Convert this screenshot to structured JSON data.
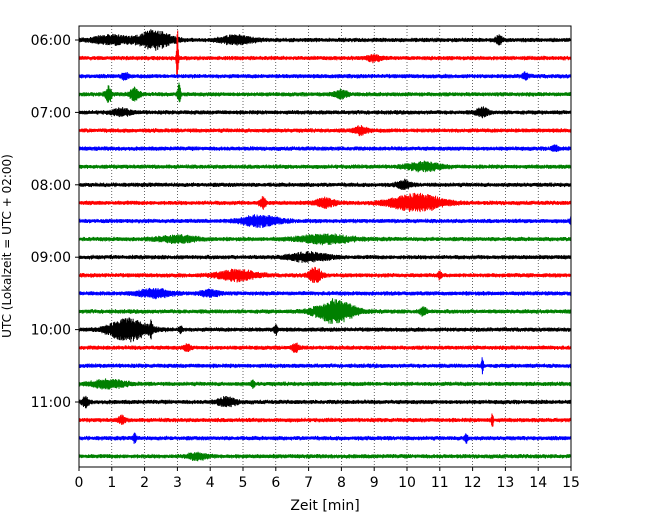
{
  "chart_data": {
    "type": "line",
    "title": "",
    "xlabel": "Zeit  [min]",
    "ylabel": "UTC (Lokalzeit = UTC + 02:00)",
    "xlim": [
      0,
      15
    ],
    "x_ticks": [
      0,
      1,
      2,
      3,
      4,
      5,
      6,
      7,
      8,
      9,
      10,
      11,
      12,
      13,
      14,
      15
    ],
    "x_tick_labels": [
      "0",
      "1",
      "2",
      "3",
      "4",
      "5",
      "6",
      "7",
      "8",
      "9",
      "10",
      "11",
      "12",
      "13",
      "14",
      "15"
    ],
    "y_tick_labels": [
      "06:00",
      "07:00",
      "08:00",
      "09:00",
      "10:00",
      "11:00"
    ],
    "grid": "vertical dotted lines at each minute",
    "line_interval_min": 15,
    "trace_colors": [
      "#000000",
      "#ff0000",
      "#0000ff",
      "#008000"
    ],
    "traces": [
      {
        "start": "06:00",
        "color": "#000000",
        "events": [
          {
            "t": 2.3,
            "amp": 9,
            "width": 0.5
          },
          {
            "t": 1.0,
            "amp": 4,
            "width": 0.6
          },
          {
            "t": 4.8,
            "amp": 4,
            "width": 0.5
          },
          {
            "t": 12.8,
            "amp": 4,
            "width": 0.1
          }
        ]
      },
      {
        "start": "06:15",
        "color": "#ff0000",
        "events": [
          {
            "t": 3.0,
            "amp": 32,
            "width": 0.03
          },
          {
            "t": 9.0,
            "amp": 3,
            "width": 0.2
          }
        ]
      },
      {
        "start": "06:30",
        "color": "#0000ff",
        "events": [
          {
            "t": 1.4,
            "amp": 4,
            "width": 0.1
          },
          {
            "t": 13.6,
            "amp": 3,
            "width": 0.1
          }
        ]
      },
      {
        "start": "06:45",
        "color": "#008000",
        "events": [
          {
            "t": 0.9,
            "amp": 8,
            "width": 0.1
          },
          {
            "t": 1.7,
            "amp": 6,
            "width": 0.15
          },
          {
            "t": 3.05,
            "amp": 10,
            "width": 0.05
          },
          {
            "t": 8.0,
            "amp": 4,
            "width": 0.2
          }
        ]
      },
      {
        "start": "07:00",
        "color": "#000000",
        "events": [
          {
            "t": 1.3,
            "amp": 3,
            "width": 0.3
          },
          {
            "t": 12.3,
            "amp": 4,
            "width": 0.2
          }
        ]
      },
      {
        "start": "07:15",
        "color": "#ff0000",
        "events": [
          {
            "t": 8.6,
            "amp": 4,
            "width": 0.2
          }
        ]
      },
      {
        "start": "07:30",
        "color": "#0000ff",
        "events": [
          {
            "t": 14.5,
            "amp": 3,
            "width": 0.1
          }
        ]
      },
      {
        "start": "07:45",
        "color": "#008000",
        "events": [
          {
            "t": 10.5,
            "amp": 4,
            "width": 0.5
          }
        ]
      },
      {
        "start": "08:00",
        "color": "#000000",
        "events": [
          {
            "t": 9.9,
            "amp": 4,
            "width": 0.2
          }
        ]
      },
      {
        "start": "08:15",
        "color": "#ff0000",
        "events": [
          {
            "t": 10.3,
            "amp": 8,
            "width": 0.8
          },
          {
            "t": 5.6,
            "amp": 5,
            "width": 0.1
          },
          {
            "t": 7.5,
            "amp": 4,
            "width": 0.3
          }
        ]
      },
      {
        "start": "08:30",
        "color": "#0000ff",
        "events": [
          {
            "t": 5.5,
            "amp": 5,
            "width": 0.6
          },
          {
            "t": 15.0,
            "amp": 4,
            "width": 0.05
          }
        ]
      },
      {
        "start": "08:45",
        "color": "#008000",
        "events": [
          {
            "t": 3.0,
            "amp": 3,
            "width": 0.6
          },
          {
            "t": 7.5,
            "amp": 4,
            "width": 0.8
          }
        ]
      },
      {
        "start": "09:00",
        "color": "#000000",
        "events": [
          {
            "t": 7.0,
            "amp": 4,
            "width": 0.6
          }
        ]
      },
      {
        "start": "09:15",
        "color": "#ff0000",
        "events": [
          {
            "t": 4.8,
            "amp": 5,
            "width": 0.6
          },
          {
            "t": 7.2,
            "amp": 7,
            "width": 0.2
          },
          {
            "t": 11.0,
            "amp": 4,
            "width": 0.05
          }
        ]
      },
      {
        "start": "09:30",
        "color": "#0000ff",
        "events": [
          {
            "t": 2.3,
            "amp": 4,
            "width": 0.5
          },
          {
            "t": 4.0,
            "amp": 3,
            "width": 0.3
          }
        ]
      },
      {
        "start": "09:45",
        "color": "#008000",
        "events": [
          {
            "t": 7.8,
            "amp": 11,
            "width": 0.6
          },
          {
            "t": 10.5,
            "amp": 4,
            "width": 0.1
          }
        ]
      },
      {
        "start": "10:00",
        "color": "#000000",
        "events": [
          {
            "t": 1.5,
            "amp": 11,
            "width": 0.6
          },
          {
            "t": 2.2,
            "amp": 6,
            "width": 0.05
          },
          {
            "t": 3.1,
            "amp": 4,
            "width": 0.05
          },
          {
            "t": 6.0,
            "amp": 5,
            "width": 0.05
          }
        ]
      },
      {
        "start": "10:15",
        "color": "#ff0000",
        "events": [
          {
            "t": 6.6,
            "amp": 4,
            "width": 0.1
          },
          {
            "t": 3.3,
            "amp": 3,
            "width": 0.1
          }
        ]
      },
      {
        "start": "10:30",
        "color": "#0000ff",
        "events": [
          {
            "t": 12.3,
            "amp": 8,
            "width": 0.03
          }
        ]
      },
      {
        "start": "10:45",
        "color": "#008000",
        "events": [
          {
            "t": 0.9,
            "amp": 4,
            "width": 0.5
          },
          {
            "t": 5.3,
            "amp": 4,
            "width": 0.05
          }
        ]
      },
      {
        "start": "11:00",
        "color": "#000000",
        "events": [
          {
            "t": 0.2,
            "amp": 5,
            "width": 0.1
          },
          {
            "t": 4.5,
            "amp": 4,
            "width": 0.3
          }
        ]
      },
      {
        "start": "11:15",
        "color": "#ff0000",
        "events": [
          {
            "t": 1.3,
            "amp": 4,
            "width": 0.1
          },
          {
            "t": 12.6,
            "amp": 8,
            "width": 0.03
          }
        ]
      },
      {
        "start": "11:30",
        "color": "#0000ff",
        "events": [
          {
            "t": 1.7,
            "amp": 5,
            "width": 0.05
          },
          {
            "t": 11.8,
            "amp": 5,
            "width": 0.05
          }
        ]
      },
      {
        "start": "11:45",
        "color": "#008000",
        "events": [
          {
            "t": 3.6,
            "amp": 3,
            "width": 0.3
          }
        ]
      }
    ]
  }
}
